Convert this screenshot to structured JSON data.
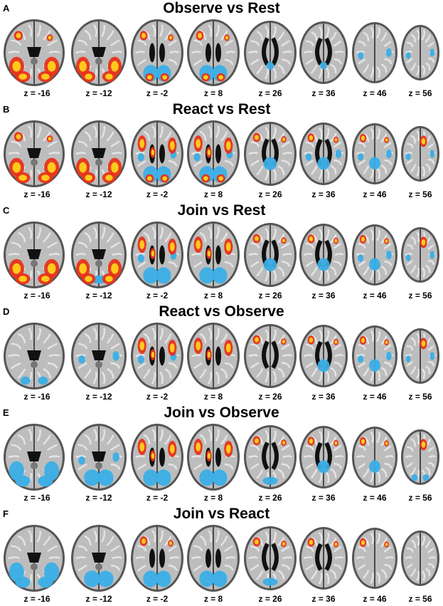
{
  "panels": [
    {
      "letter": "A",
      "title": "Observe vs Rest",
      "slices": [
        {
          "z": "z = -16",
          "warm": [
            "occ-bilateral-large",
            "frontal-small"
          ],
          "cool": []
        },
        {
          "z": "z = -12",
          "warm": [
            "occ-bilateral-large"
          ],
          "cool": []
        },
        {
          "z": "z = -2",
          "warm": [
            "frontal-small",
            "occ-small"
          ],
          "cool": [
            "occ-medial"
          ]
        },
        {
          "z": "z = 8",
          "warm": [
            "frontal-small",
            "occ-small"
          ],
          "cool": [
            "occ-medial"
          ]
        },
        {
          "z": "z = 26",
          "warm": [],
          "cool": [
            "post-medial-small"
          ]
        },
        {
          "z": "z = 36",
          "warm": [],
          "cool": [
            "post-medial-small"
          ]
        },
        {
          "z": "z = 46",
          "warm": [],
          "cool": [
            "lat-spots"
          ]
        },
        {
          "z": "z = 56",
          "warm": [],
          "cool": [
            "lat-spots"
          ]
        }
      ]
    },
    {
      "letter": "B",
      "title": "React vs Rest",
      "slices": [
        {
          "z": "z = -16",
          "warm": [
            "occ-bilateral-large",
            "frontal-small"
          ],
          "cool": []
        },
        {
          "z": "z = -12",
          "warm": [
            "occ-bilateral-large"
          ],
          "cool": []
        },
        {
          "z": "z = -2",
          "warm": [
            "insula",
            "occ-small"
          ],
          "cool": [
            "occ-medial",
            "lat-spots"
          ]
        },
        {
          "z": "z = 8",
          "warm": [
            "insula",
            "occ-small"
          ],
          "cool": [
            "occ-medial",
            "lat-spots"
          ]
        },
        {
          "z": "z = 26",
          "warm": [
            "frontal-small"
          ],
          "cool": [
            "post-medial"
          ]
        },
        {
          "z": "z = 36",
          "warm": [
            "frontal-small"
          ],
          "cool": [
            "post-medial",
            "lat-spots"
          ]
        },
        {
          "z": "z = 46",
          "warm": [
            "frontal-small"
          ],
          "cool": [
            "post-medial",
            "lat-spots"
          ]
        },
        {
          "z": "z = 56",
          "warm": [
            "sma"
          ],
          "cool": [
            "lat-spots"
          ]
        }
      ]
    },
    {
      "letter": "C",
      "title": "Join vs Rest",
      "slices": [
        {
          "z": "z = -16",
          "warm": [
            "occ-bilateral-large"
          ],
          "cool": []
        },
        {
          "z": "z = -12",
          "warm": [
            "occ-bilateral-large"
          ],
          "cool": [
            "occ-medial-small"
          ]
        },
        {
          "z": "z = -2",
          "warm": [
            "insula"
          ],
          "cool": [
            "occ-medial",
            "lat-spots"
          ]
        },
        {
          "z": "z = 8",
          "warm": [
            "insula"
          ],
          "cool": [
            "occ-medial"
          ]
        },
        {
          "z": "z = 26",
          "warm": [
            "frontal-small"
          ],
          "cool": [
            "post-medial"
          ]
        },
        {
          "z": "z = 36",
          "warm": [
            "frontal-small"
          ],
          "cool": [
            "post-medial"
          ]
        },
        {
          "z": "z = 46",
          "warm": [
            "frontal-small"
          ],
          "cool": [
            "post-medial",
            "lat-spots"
          ]
        },
        {
          "z": "z = 56",
          "warm": [
            "sma"
          ],
          "cool": [
            "lat-spots"
          ]
        }
      ]
    },
    {
      "letter": "D",
      "title": "React vs Observe",
      "slices": [
        {
          "z": "z = -16",
          "warm": [],
          "cool": [
            "occ-small"
          ]
        },
        {
          "z": "z = -12",
          "warm": [],
          "cool": [
            "lat-spots"
          ]
        },
        {
          "z": "z = -2",
          "warm": [
            "insula"
          ],
          "cool": [
            "lat-spots"
          ]
        },
        {
          "z": "z = 8",
          "warm": [
            "insula"
          ],
          "cool": []
        },
        {
          "z": "z = 26",
          "warm": [
            "frontal-small"
          ],
          "cool": []
        },
        {
          "z": "z = 36",
          "warm": [
            "frontal-small"
          ],
          "cool": [
            "post-medial"
          ]
        },
        {
          "z": "z = 46",
          "warm": [
            "frontal-small"
          ],
          "cool": [
            "post-medial",
            "lat-spots"
          ]
        },
        {
          "z": "z = 56",
          "warm": [
            "sma"
          ],
          "cool": [
            "lat-spots"
          ]
        }
      ]
    },
    {
      "letter": "E",
      "title": "Join vs Observe",
      "slices": [
        {
          "z": "z = -16",
          "warm": [],
          "cool": [
            "occ-bilateral-large"
          ]
        },
        {
          "z": "z = -12",
          "warm": [],
          "cool": [
            "occ-medial",
            "lat-spots"
          ]
        },
        {
          "z": "z = -2",
          "warm": [
            "insula"
          ],
          "cool": [
            "occ-medial"
          ]
        },
        {
          "z": "z = 8",
          "warm": [
            "insula"
          ],
          "cool": [
            "occ-medial"
          ]
        },
        {
          "z": "z = 26",
          "warm": [
            "frontal-small"
          ],
          "cool": [
            "occ-medial-small"
          ]
        },
        {
          "z": "z = 36",
          "warm": [
            "frontal-small"
          ],
          "cool": [
            "post-medial"
          ]
        },
        {
          "z": "z = 46",
          "warm": [
            "frontal-small"
          ],
          "cool": [
            "post-medial"
          ]
        },
        {
          "z": "z = 56",
          "warm": [
            "sma"
          ],
          "cool": [
            "occ-small"
          ]
        }
      ]
    },
    {
      "letter": "F",
      "title": "Join vs React",
      "slices": [
        {
          "z": "z = -16",
          "warm": [],
          "cool": [
            "occ-bilateral-large"
          ]
        },
        {
          "z": "z = -12",
          "warm": [],
          "cool": [
            "occ-medial"
          ]
        },
        {
          "z": "z = -2",
          "warm": [
            "frontal-small"
          ],
          "cool": [
            "occ-medial"
          ]
        },
        {
          "z": "z = 8",
          "warm": [],
          "cool": [
            "occ-medial"
          ]
        },
        {
          "z": "z = 26",
          "warm": [
            "frontal-small"
          ],
          "cool": [
            "occ-medial-small"
          ]
        },
        {
          "z": "z = 36",
          "warm": [
            "frontal-small"
          ],
          "cool": []
        },
        {
          "z": "z = 46",
          "warm": [
            "frontal-small"
          ],
          "cool": []
        },
        {
          "z": "z = 56",
          "warm": [],
          "cool": []
        }
      ]
    }
  ],
  "colors": {
    "warm_outer": "#e8321a",
    "warm_inner": "#ffd21a",
    "cool": "#3aaee6",
    "brain_fill": "#bdbdbd",
    "brain_dark": "#555555",
    "ventricle": "#111111"
  }
}
